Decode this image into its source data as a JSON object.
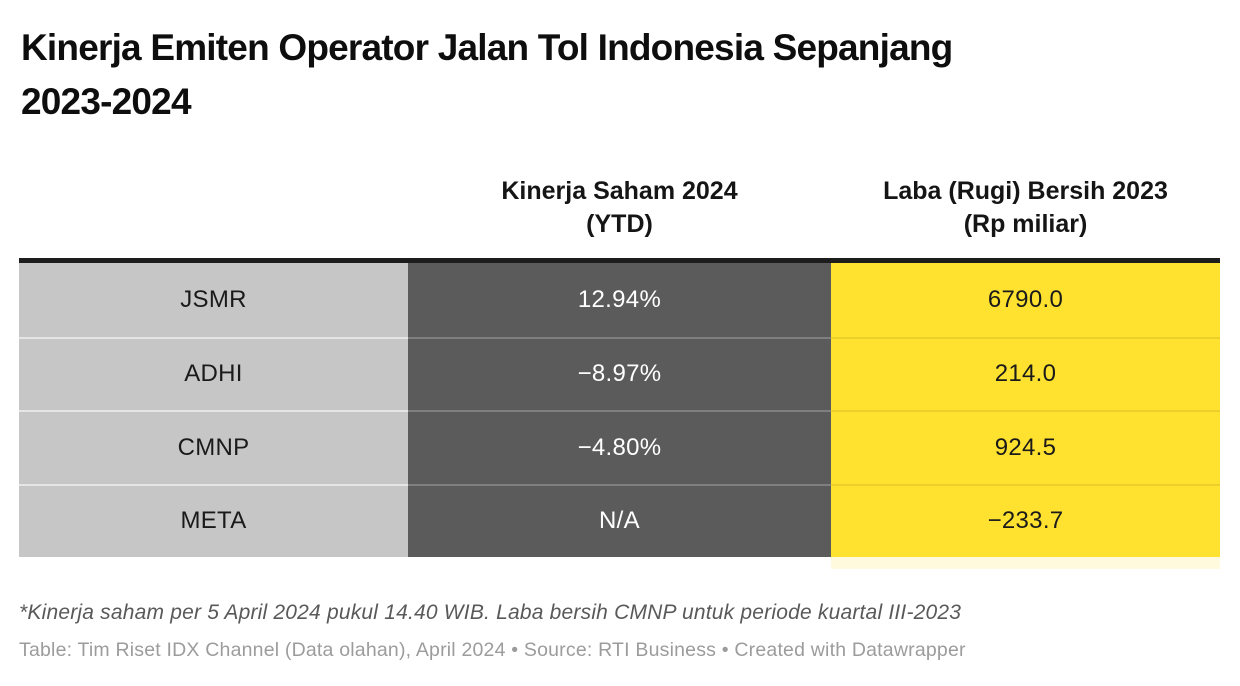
{
  "title": "Kinerja Emiten Operator Jalan Tol Indonesia Sepanjang\n2023-2024",
  "chart_data": {
    "type": "table",
    "title": "Kinerja Emiten Operator Jalan Tol Indonesia Sepanjang 2023-2024",
    "columns": [
      "",
      "Kinerja Saham 2024\n(YTD)",
      "Laba (Rugi) Bersih 2023\n(Rp miliar)"
    ],
    "rows": [
      [
        "JSMR",
        "12.94%",
        "6790.0"
      ],
      [
        "ADHI",
        "−8.97%",
        "214.0"
      ],
      [
        "CMNP",
        "−4.80%",
        "924.5"
      ],
      [
        "META",
        "N/A",
        "−233.7"
      ]
    ],
    "series": [
      {
        "name": "Kinerja Saham 2024 (YTD), %",
        "values": [
          12.94,
          -8.97,
          -4.8,
          null
        ]
      },
      {
        "name": "Laba (Rugi) Bersih 2023 (Rp miliar)",
        "values": [
          6790.0,
          214.0,
          924.5,
          -233.7
        ]
      }
    ],
    "categories": [
      "JSMR",
      "ADHI",
      "CMNP",
      "META"
    ]
  },
  "footer": {
    "footnote": "*Kinerja saham per 5 April 2024 pukul 14.40 WIB. Laba bersih CMNP untuk periode kuartal III-2023",
    "attribution": "Table: Tim Riset IDX Channel (Data olahan), April 2024 • Source: RTI Business • Created with Datawrapper"
  },
  "colors": {
    "ticker_column_bg": "#c6c6c6",
    "kinerja_column_bg": "#5b5b5b",
    "laba_column_bg": "#ffe22f",
    "table_top_border": "#1d1d1d",
    "title_text": "#0e0e0e",
    "kinerja_text": "#ffffff",
    "body_text": "#1a1a1a",
    "footnote_text": "#595959",
    "attribution_text": "#9c9c9c",
    "page_bg": "#ffffff"
  }
}
